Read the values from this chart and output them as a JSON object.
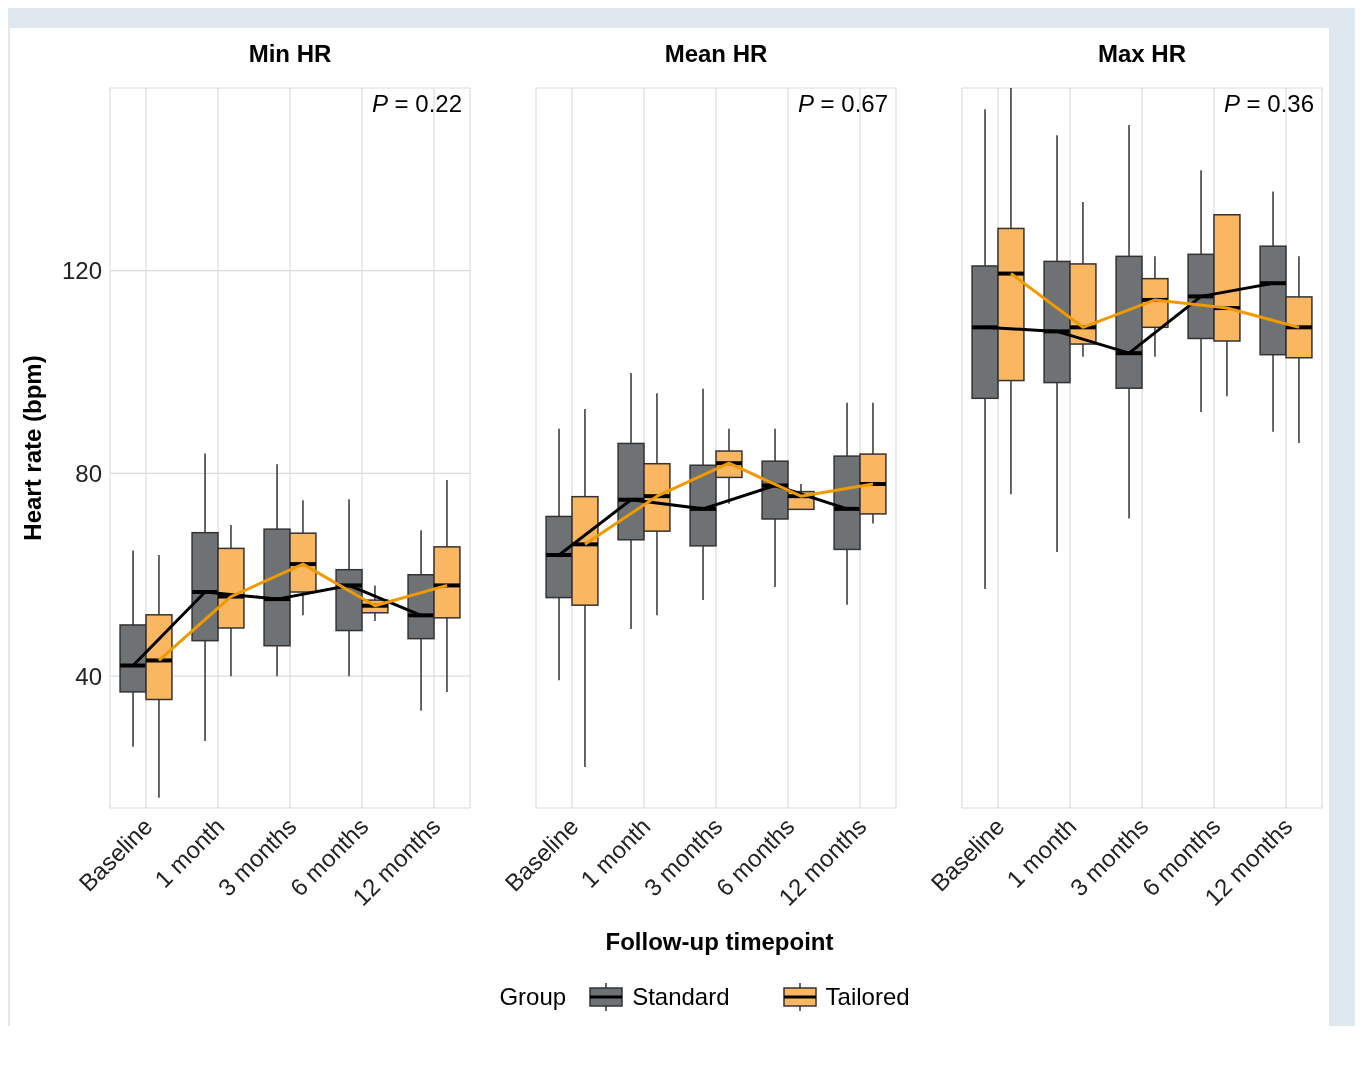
{
  "chart_data": [
    {
      "type": "box",
      "title": "Min HR",
      "ylabel": "Heart rate (bpm)",
      "legend": "bottom",
      "legend_title": "Group",
      "annotations": [
        "P = 0.22"
      ],
      "categories": [
        "Baseline",
        "1 month",
        "3 months",
        "6 months",
        "12 months"
      ],
      "ylim": [
        14,
        156
      ],
      "yticks": [
        40,
        80,
        120
      ],
      "grid": true,
      "series": [
        {
          "name": "Standard",
          "color": "#6f7274",
          "boxes": [
            {
              "low": 26.1,
              "q1": 36.9,
              "median": 42.1,
              "q3": 50.1,
              "high": 64.8
            },
            {
              "low": 27.2,
              "q1": 47,
              "median": 56.6,
              "q3": 68.3,
              "high": 83.9
            },
            {
              "low": 40,
              "q1": 46,
              "median": 55.2,
              "q3": 69,
              "high": 81.8
            },
            {
              "low": 40,
              "q1": 49,
              "median": 57.9,
              "q3": 61,
              "high": 74.9
            },
            {
              "low": 33.2,
              "q1": 47.4,
              "median": 52,
              "q3": 60,
              "high": 68.8
            }
          ]
        },
        {
          "name": "Tailored",
          "color": "#fbb661",
          "boxes": [
            {
              "low": 16,
              "q1": 35.4,
              "median": 43.1,
              "q3": 52.1,
              "high": 63.9
            },
            {
              "low": 40,
              "q1": 49.5,
              "median": 55.7,
              "q3": 65.2,
              "high": 69.8
            },
            {
              "low": 52,
              "q1": 56.6,
              "median": 62.1,
              "q3": 68.2,
              "high": 74.7
            },
            {
              "low": 50.9,
              "q1": 52.5,
              "median": 53.9,
              "q3": 55,
              "high": 57.9
            },
            {
              "low": 36.9,
              "q1": 51.5,
              "median": 57.9,
              "q3": 65.5,
              "high": 78.7
            }
          ]
        },
        {
          "type": "line",
          "color": "#000000",
          "values": [
            42.1,
            56.6,
            55.2,
            57.9,
            52
          ]
        },
        {
          "type": "line",
          "color": "#f09a00",
          "values": [
            43.1,
            55.7,
            62.1,
            53.9,
            57.9
          ]
        }
      ]
    },
    {
      "type": "box",
      "title": "Mean HR",
      "xlabel": "Follow-up timepoint",
      "annotations": [
        "P = 0.67"
      ],
      "categories": [
        "Baseline",
        "1 month",
        "3 months",
        "6 months",
        "12 months"
      ],
      "ylim": [
        14,
        156
      ],
      "yticks": [
        40,
        80,
        120
      ],
      "grid": true,
      "tick_labels": "x",
      "series": [
        {
          "color": "#6f7274",
          "boxes": [
            {
              "low": 39.2,
              "q1": 55.5,
              "median": 63.9,
              "q3": 71.5,
              "high": 88.8
            },
            {
              "low": 49.3,
              "q1": 66.9,
              "median": 74.8,
              "q3": 85.9,
              "high": 99.8
            },
            {
              "low": 55,
              "q1": 65.7,
              "median": 73,
              "q3": 81.6,
              "high": 96.7
            },
            {
              "low": 57.6,
              "q1": 71,
              "median": 77.6,
              "q3": 82.4,
              "high": 88.8
            },
            {
              "low": 54.1,
              "q1": 65,
              "median": 73,
              "q3": 83.4,
              "high": 93.9
            }
          ]
        },
        {
          "color": "#fbb661",
          "boxes": [
            {
              "low": 22.1,
              "q1": 54,
              "median": 66,
              "q3": 75.4,
              "high": 92.7
            },
            {
              "low": 52,
              "q1": 68.6,
              "median": 75.5,
              "q3": 81.9,
              "high": 95.8
            },
            {
              "low": 74,
              "q1": 79.2,
              "median": 82,
              "q3": 84.4,
              "high": 88.8
            },
            {
              "low": 72.9,
              "q1": 72.9,
              "median": 75.5,
              "q3": 76.4,
              "high": 77.9
            },
            {
              "low": 70.1,
              "q1": 72,
              "median": 77.9,
              "q3": 83.8,
              "high": 93.9
            }
          ]
        },
        {
          "type": "line",
          "color": "#000000",
          "values": [
            63.9,
            74.8,
            73,
            77.6,
            73
          ]
        },
        {
          "type": "line",
          "color": "#f09a00",
          "values": [
            66,
            75.5,
            82,
            75.5,
            77.9
          ]
        }
      ]
    },
    {
      "type": "box",
      "title": "Max HR",
      "annotations": [
        "P = 0.36"
      ],
      "categories": [
        "Baseline",
        "1 month",
        "3 months",
        "6 months",
        "12 months"
      ],
      "ylim": [
        14,
        156
      ],
      "yticks": [
        40,
        80,
        120
      ],
      "grid": true,
      "tick_labels": "x",
      "series": [
        {
          "color": "#6f7274",
          "boxes": [
            {
              "low": 57.2,
              "q1": 94.8,
              "median": 108.8,
              "q3": 120.9,
              "high": 151.8
            },
            {
              "low": 64.5,
              "q1": 97.9,
              "median": 108,
              "q3": 121.8,
              "high": 146.7
            },
            {
              "low": 71.1,
              "q1": 96.8,
              "median": 103.7,
              "q3": 122.8,
              "high": 148.7
            },
            {
              "low": 92.1,
              "q1": 106.6,
              "median": 114.9,
              "q3": 123.2,
              "high": 139.8
            },
            {
              "low": 88.2,
              "q1": 103.4,
              "median": 117.5,
              "q3": 124.8,
              "high": 135.6
            }
          ]
        },
        {
          "color": "#fbb661",
          "boxes": [
            {
              "low": 75.9,
              "q1": 98.3,
              "median": 119.4,
              "q3": 128.3,
              "high": 156
            },
            {
              "low": 103,
              "q1": 105.5,
              "median": 108.8,
              "q3": 121.3,
              "high": 133.5
            },
            {
              "low": 103,
              "q1": 108.8,
              "median": 114.2,
              "q3": 118.4,
              "high": 122.8
            },
            {
              "low": 95.2,
              "q1": 106.1,
              "median": 112.6,
              "q3": 131,
              "high": 131
            },
            {
              "low": 86,
              "q1": 102.8,
              "median": 108.8,
              "q3": 114.8,
              "high": 122.8
            }
          ]
        },
        {
          "type": "line",
          "color": "#000000",
          "values": [
            108.8,
            108,
            103.7,
            114.9,
            117.5
          ]
        },
        {
          "type": "line",
          "color": "#f09a00",
          "values": [
            119.4,
            108.8,
            114.2,
            112.6,
            108.8
          ]
        }
      ]
    }
  ]
}
